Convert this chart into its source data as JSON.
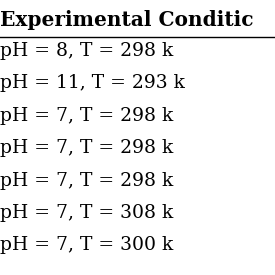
{
  "header": "Experimental Conditic",
  "rows": [
    "pH = 8, T = 298 k",
    "pH = 11, T = 293 k",
    "pH = 7, T = 298 k",
    "pH = 7, T = 298 k",
    "pH = 7, T = 298 k",
    "pH = 7, T = 308 k",
    "pH = 7, T = 300 k"
  ],
  "background_color": "#ffffff",
  "text_color": "#000000",
  "header_fontsize": 14.5,
  "row_fontsize": 13.5,
  "fig_width": 2.75,
  "fig_height": 2.75,
  "dpi": 100
}
